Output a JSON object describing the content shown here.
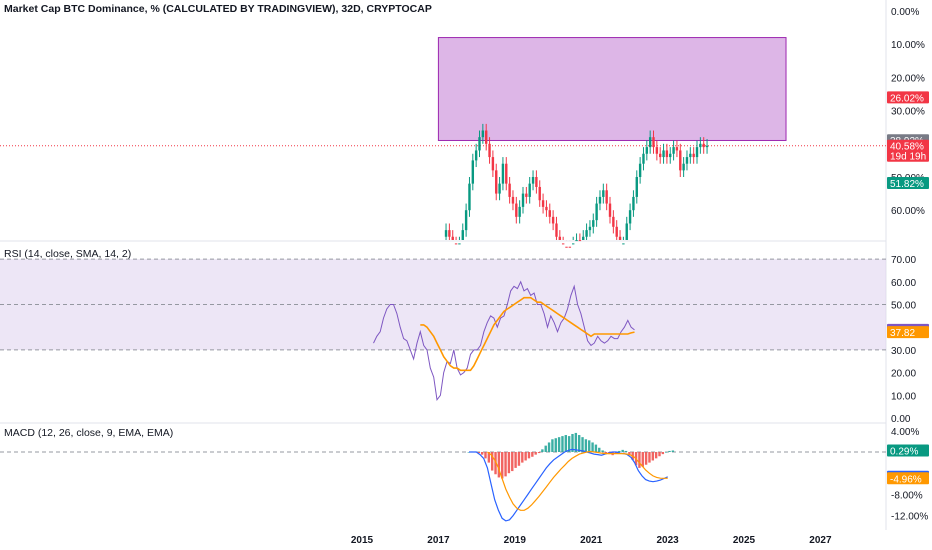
{
  "header": {
    "title": "Market Cap BTC Dominance, % (CALCULATED BY TRADINGVIEW), 32D, CRYPTOCAP"
  },
  "colors": {
    "up": "#089981",
    "down": "#f23645",
    "rsi": "#7e57c2",
    "rsi_ma": "#ff9800",
    "macd": "#2962ff",
    "signal": "#ff9800",
    "zone": "#d7a9e3",
    "zone_border": "#9c27b0"
  },
  "x_axis": {
    "labels": [
      "2015",
      "2017",
      "2019",
      "2021",
      "2023",
      "2025",
      "2027"
    ]
  },
  "chart_data": [
    {
      "type": "candlestick",
      "name": "price",
      "title": "Market Cap BTC Dominance, % (CALCULATED BY TRADINGVIEW), 32D, CRYPTOCAP",
      "y_tick_labels": [
        "0.00%",
        "10.00%",
        "20.00%",
        "30.00%",
        "50.00%",
        "60.00%"
      ],
      "y_range_inverted": [
        0,
        70
      ],
      "x_start_year": 2017.2,
      "x_step_years": 0.0876,
      "closes": [
        66,
        68,
        70,
        72,
        70,
        66,
        60,
        52,
        45,
        42,
        38,
        36,
        40,
        44,
        48,
        55,
        52,
        46,
        52,
        56,
        58,
        62,
        59,
        55,
        56,
        52,
        50,
        53,
        57,
        59,
        60,
        62,
        64,
        68,
        70,
        71,
        71,
        72,
        70,
        69,
        70,
        68,
        66,
        65,
        63,
        58,
        56,
        54,
        58,
        62,
        65,
        68,
        71,
        70,
        64,
        60,
        56,
        50,
        46,
        43,
        41,
        38,
        41,
        43,
        44,
        42,
        44,
        43,
        41,
        42,
        48,
        46,
        44,
        43,
        44,
        41,
        40,
        41,
        40.58
      ],
      "zone_rect": {
        "x0_year": 2017.0,
        "x1_year": 2026.1,
        "y_top": 8,
        "y_bottom": 39
      },
      "horizontal_line": {
        "value": 40.58,
        "style": "dotted"
      },
      "badges": [
        {
          "label": "26.02%",
          "value": 26.02,
          "color": "#f23645"
        },
        {
          "label": "38.92%",
          "value": 38.92,
          "color": "#787b86"
        },
        {
          "label": "40.58%",
          "value": 40.58,
          "color": "#f23645",
          "sub": "19d 19h"
        },
        {
          "label": "51.82%",
          "value": 51.82,
          "color": "#089981"
        }
      ]
    },
    {
      "type": "line",
      "name": "rsi",
      "title": "RSI (14, close, SMA, 14, 2)",
      "y_tick_labels": [
        "70.00",
        "60.00",
        "50.00",
        "40.00",
        "30.00",
        "20.00",
        "10.00",
        "0.00"
      ],
      "ylim": [
        0,
        70
      ],
      "bands": [
        30,
        50,
        70
      ],
      "x_start_year": 2015.3,
      "x_step_years": 0.0876,
      "series": [
        {
          "color": "#7e57c2",
          "values": [
            33,
            36,
            38,
            44,
            48,
            50,
            50,
            46,
            40,
            35,
            34,
            30,
            26,
            33,
            38,
            32,
            30,
            22,
            18,
            8,
            10,
            20,
            25,
            24,
            30,
            22,
            19,
            20,
            22,
            28,
            30,
            30,
            32,
            38,
            42,
            45,
            44,
            40,
            44,
            45,
            50,
            56,
            58,
            57,
            60,
            56,
            57,
            54,
            55,
            50,
            50,
            46,
            40,
            45,
            42,
            38,
            42,
            44,
            48,
            54,
            58,
            50,
            46,
            40,
            34,
            32,
            33,
            36,
            34,
            33,
            34,
            36,
            35,
            35,
            38,
            40,
            43,
            40,
            38.83
          ]
        },
        {
          "color": "#ff9800",
          "values": [
            null,
            null,
            null,
            null,
            null,
            null,
            null,
            null,
            null,
            null,
            null,
            null,
            null,
            null,
            41,
            41,
            40,
            38,
            36,
            33,
            30,
            27,
            25,
            23,
            22,
            22,
            21,
            21,
            21,
            21,
            23,
            26,
            29,
            32,
            35,
            38,
            41,
            43,
            45,
            47,
            48,
            49,
            50,
            51,
            52,
            53,
            53,
            53,
            52,
            51,
            51,
            50,
            49,
            48,
            47,
            46,
            45,
            44,
            43,
            42,
            41,
            40,
            39,
            38,
            37,
            36,
            37,
            37,
            37,
            37,
            37,
            37,
            37,
            37,
            37,
            37,
            37,
            37.5,
            37.82
          ]
        }
      ],
      "badges": [
        {
          "label": "38.83",
          "value": 38.83,
          "color": "#7e57c2"
        },
        {
          "label": "37.82",
          "value": 37.82,
          "color": "#ff9800"
        }
      ]
    },
    {
      "type": "histogram+line",
      "name": "macd",
      "title": "MACD (12, 26, close, 9, EMA, EMA)",
      "y_tick_labels": [
        "4.00%",
        "-8.00%",
        "-12.00%"
      ],
      "ylim": [
        -14,
        5
      ],
      "x_start_year": 2016.0,
      "x_step_years": 0.0876,
      "histogram": [
        0,
        0.1,
        0.1,
        -0.2,
        -0.5,
        -1.2,
        -2.0,
        -3.5,
        -4.2,
        -4.8,
        -5.0,
        -4.6,
        -4.0,
        -3.6,
        -3.0,
        -2.6,
        -2.0,
        -1.6,
        -1.2,
        -0.9,
        -0.5,
        -0.2,
        0.5,
        1.2,
        1.8,
        2.4,
        2.6,
        2.8,
        3.0,
        3.2,
        3.0,
        3.4,
        3.6,
        3.2,
        2.8,
        2.4,
        2.2,
        1.8,
        1.4,
        0.8,
        0.3,
        -0.2,
        -0.4,
        -0.6,
        -0.3,
        0.2,
        0.4,
        0.2,
        -0.5,
        -1.5,
        -2.5,
        -3.0,
        -2.8,
        -2.4,
        -2.0,
        -1.6,
        -1.2,
        -0.8,
        -0.4,
        0.0,
        0.2,
        0.29
      ],
      "series": [
        {
          "color": "#2962ff",
          "values": [
            0,
            0,
            0,
            -0.5,
            -1.2,
            -3,
            -6,
            -9,
            -11,
            -12.5,
            -13,
            -12.8,
            -12,
            -11,
            -10,
            -9,
            -8,
            -7,
            -6,
            -5,
            -4,
            -3,
            -2.2,
            -1.5,
            -1,
            -0.5,
            0,
            0.3,
            0.5,
            0.4,
            0.3,
            0.2,
            0,
            -0.2,
            -0.4,
            -0.5,
            -0.6,
            -0.4,
            -0.2,
            0,
            0,
            -0.2,
            -0.3,
            -0.5,
            -1,
            -2,
            -3.5,
            -4.5,
            -5.2,
            -5.5,
            -5.6,
            -5.5,
            -5.3,
            -5.0,
            -4.67
          ]
        },
        {
          "color": "#ff9800",
          "values": [
            null,
            null,
            null,
            null,
            null,
            0,
            -0.5,
            -1.5,
            -3,
            -5,
            -7,
            -8.5,
            -9.8,
            -10.6,
            -11,
            -11,
            -10.6,
            -10,
            -9.2,
            -8.4,
            -7.5,
            -6.6,
            -5.7,
            -4.8,
            -4,
            -3.2,
            -2.5,
            -1.8,
            -1.2,
            -0.8,
            -0.4,
            -0.2,
            0,
            0.1,
            0,
            -0.1,
            -0.2,
            -0.3,
            -0.3,
            -0.3,
            -0.3,
            -0.3,
            -0.3,
            -0.4,
            -0.6,
            -1.0,
            -1.8,
            -2.6,
            -3.4,
            -4.0,
            -4.5,
            -4.8,
            -4.95,
            -4.96,
            -4.96
          ]
        }
      ],
      "badges": [
        {
          "label": "0.29%",
          "value": 0.29,
          "color": "#089981"
        },
        {
          "label": "-4.67%",
          "value": -4.67,
          "color": "#2962ff"
        },
        {
          "label": "-4.96%",
          "value": -4.96,
          "color": "#ff9800"
        }
      ]
    }
  ]
}
